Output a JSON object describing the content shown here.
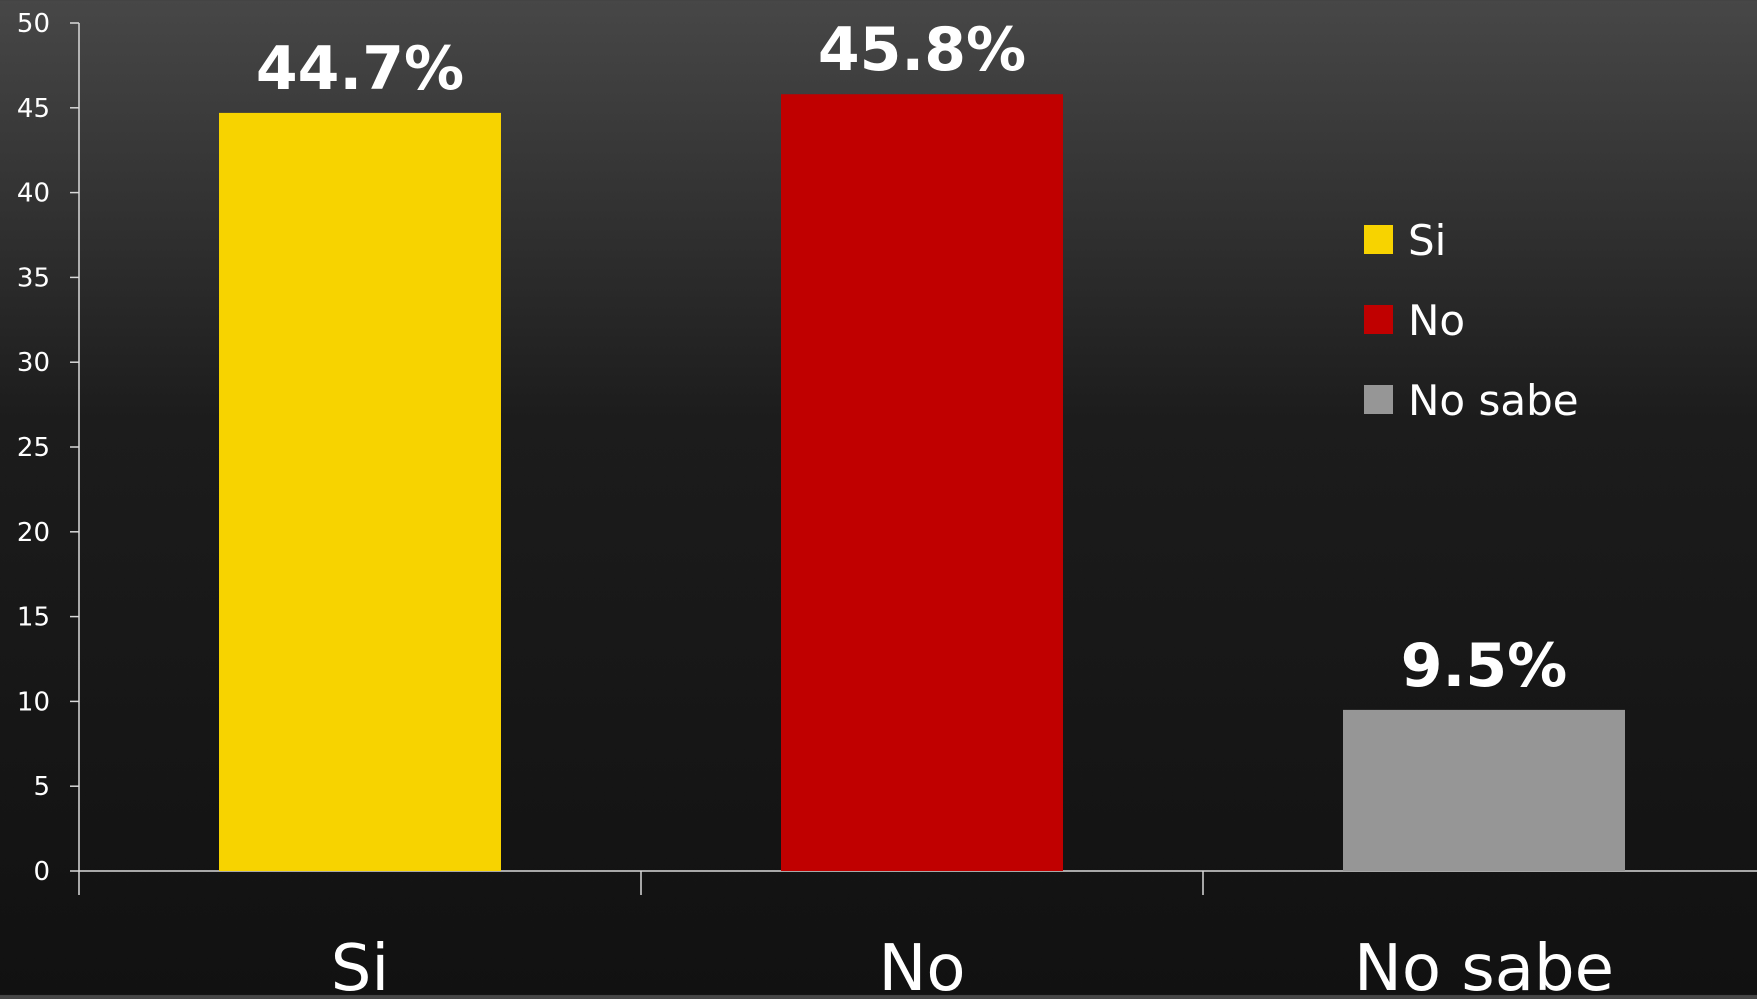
{
  "chart_data": {
    "type": "bar",
    "categories": [
      "Si",
      "No",
      "No sabe"
    ],
    "values": [
      44.7,
      45.8,
      9.5
    ],
    "data_labels": [
      "44.7%",
      "45.8%",
      "9.5%"
    ],
    "colors": [
      "#f7d300",
      "#c00000",
      "#969696"
    ],
    "ylim": [
      0,
      50
    ],
    "yticks": [
      "0",
      "5",
      "10",
      "15",
      "20",
      "25",
      "30",
      "35",
      "40",
      "45",
      "50"
    ],
    "grid": false,
    "legend": {
      "placement": "right",
      "entries": [
        {
          "label": "Si",
          "color": "#f7d300"
        },
        {
          "label": "No",
          "color": "#c00000"
        },
        {
          "label": "No sabe",
          "color": "#969696"
        }
      ]
    }
  }
}
